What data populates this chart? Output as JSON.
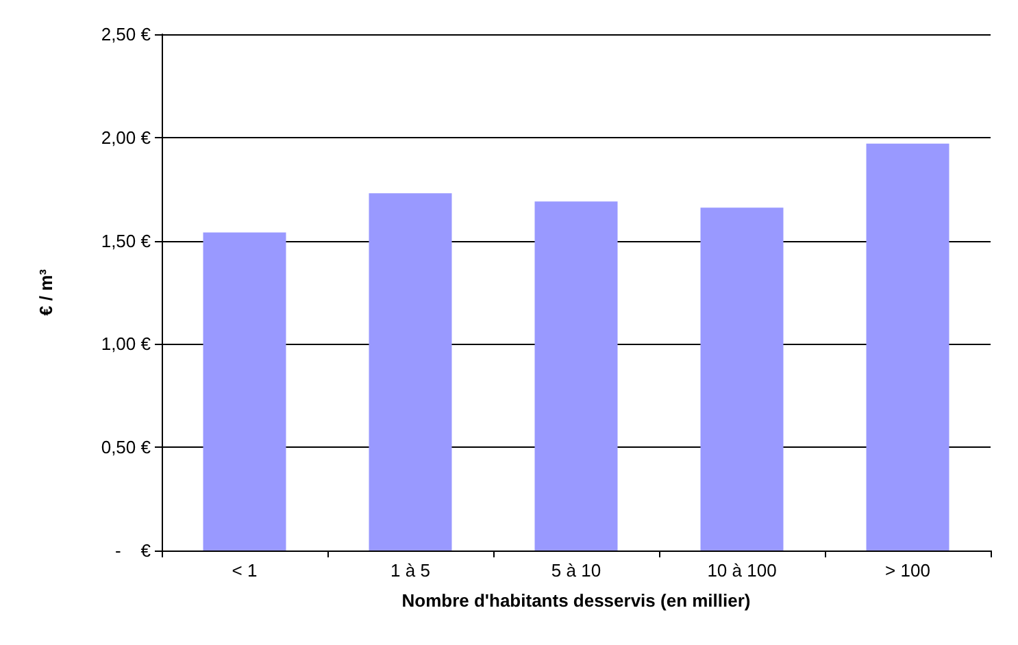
{
  "chart_data": {
    "type": "bar",
    "xlabel": "Nombre d'habitants desservis (en millier)",
    "ylabel": "€ / m³",
    "categories": [
      "< 1",
      "1 à 5",
      "5 à 10",
      "10 à 100",
      "> 100"
    ],
    "values": [
      1.54,
      1.73,
      1.69,
      1.66,
      1.97
    ],
    "color": "#9999ff",
    "ylim": [
      0,
      2.5
    ],
    "yticks": [
      {
        "value": 0,
        "label": "-    €"
      },
      {
        "value": 0.5,
        "label": "0,50 €"
      },
      {
        "value": 1,
        "label": "1,00 €"
      },
      {
        "value": 1.5,
        "label": "1,50 €"
      },
      {
        "value": 2,
        "label": "2,00 €"
      },
      {
        "value": 2.5,
        "label": "2,50 €"
      }
    ],
    "grid": "y"
  }
}
